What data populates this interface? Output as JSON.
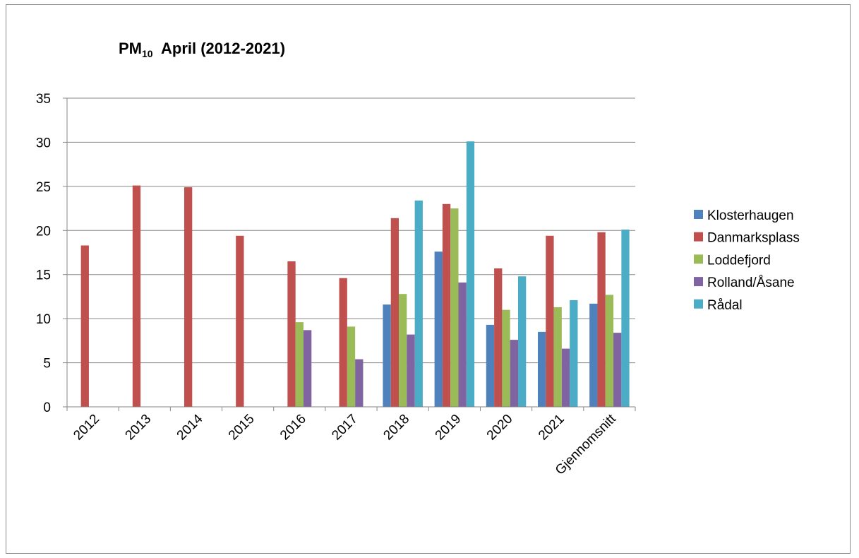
{
  "chart_data": {
    "type": "bar",
    "title": {
      "main": "PM",
      "subscript": "10",
      "rest": "April (2012-2021)"
    },
    "categories": [
      "2012",
      "2013",
      "2014",
      "2015",
      "2016",
      "2017",
      "2018",
      "2019",
      "2020",
      "2021",
      "Gjennomsnitt"
    ],
    "series": [
      {
        "name": "Klosterhaugen",
        "color": "#4f81bd",
        "values": [
          null,
          null,
          null,
          null,
          null,
          null,
          11.6,
          17.6,
          9.3,
          8.5,
          11.7
        ]
      },
      {
        "name": "Danmarksplass",
        "color": "#c0504d",
        "values": [
          18.3,
          25.1,
          24.9,
          19.4,
          16.5,
          14.6,
          21.4,
          23.0,
          15.7,
          19.4,
          19.8
        ]
      },
      {
        "name": "Loddefjord",
        "color": "#9bbb59",
        "values": [
          null,
          null,
          null,
          null,
          9.6,
          9.1,
          12.8,
          22.5,
          11.0,
          11.3,
          12.7
        ]
      },
      {
        "name": "Rolland/Åsane",
        "color": "#8064a2",
        "values": [
          null,
          null,
          null,
          null,
          8.7,
          5.4,
          8.2,
          14.1,
          7.6,
          6.6,
          8.4
        ]
      },
      {
        "name": "Rådal",
        "color": "#4bacc6",
        "values": [
          null,
          null,
          null,
          null,
          null,
          null,
          23.4,
          30.1,
          14.8,
          12.1,
          20.1
        ]
      }
    ],
    "xlabel": "",
    "ylabel": "",
    "ylim": [
      0,
      35
    ],
    "yticks": [
      "0",
      "5",
      "10",
      "15",
      "20",
      "25",
      "30",
      "35"
    ],
    "grid": true,
    "legend": "right"
  }
}
